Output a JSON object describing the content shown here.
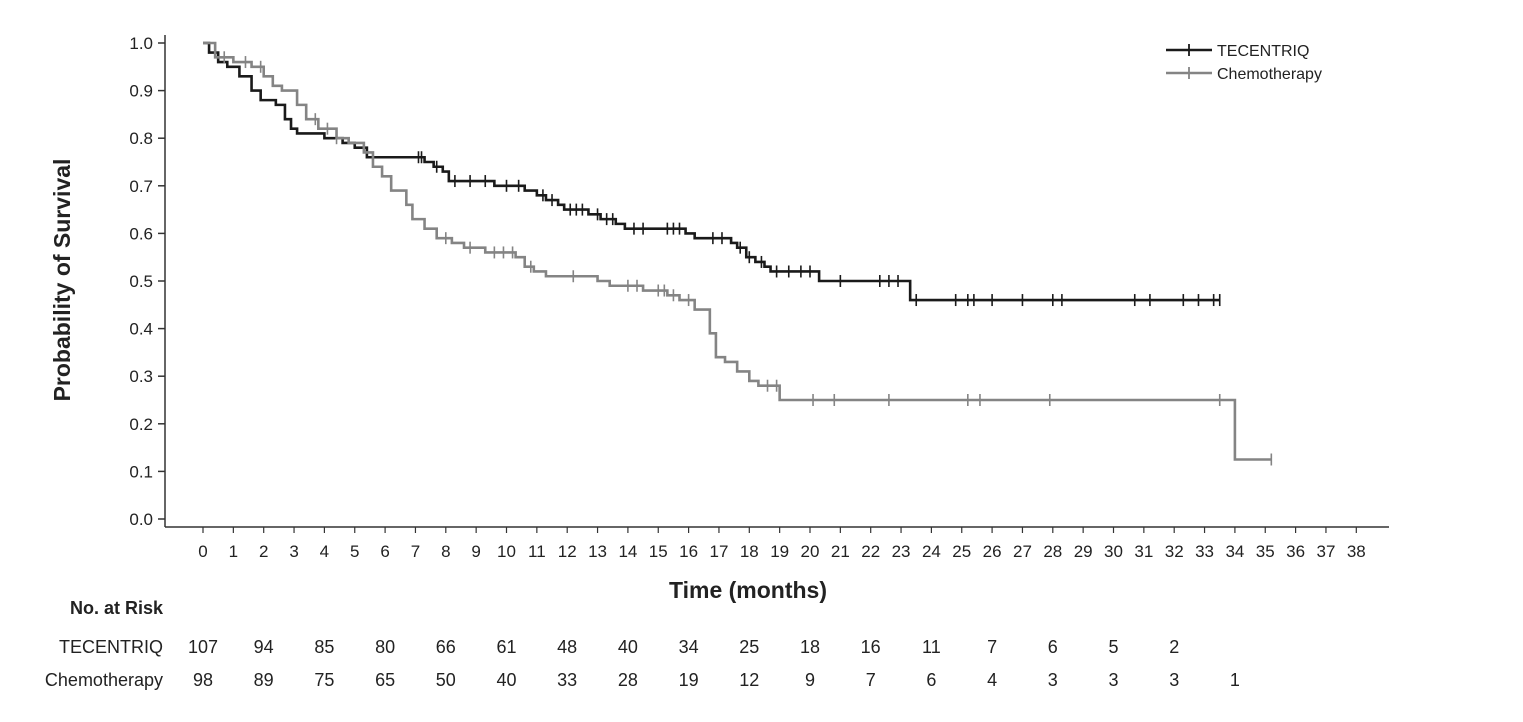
{
  "chart_data": {
    "type": "line",
    "subtype": "kaplan-meier",
    "title": "",
    "xlabel": "Time (months)",
    "ylabel": "Probability of Survival",
    "xlim": [
      0,
      38
    ],
    "ylim": [
      0,
      1
    ],
    "x_ticks": [
      0,
      1,
      2,
      3,
      4,
      5,
      6,
      7,
      8,
      9,
      10,
      11,
      12,
      13,
      14,
      15,
      16,
      17,
      18,
      19,
      20,
      21,
      22,
      23,
      24,
      25,
      26,
      27,
      28,
      29,
      30,
      31,
      32,
      33,
      34,
      35,
      36,
      37,
      38
    ],
    "y_ticks": [
      "0.0",
      "0.1",
      "0.2",
      "0.3",
      "0.4",
      "0.5",
      "0.6",
      "0.7",
      "0.8",
      "0.9",
      "1.0"
    ],
    "grid": false,
    "legend_position": "top-right",
    "series": [
      {
        "name": "TECENTRIQ",
        "color": "#1a1a1a",
        "steps": [
          [
            0,
            1.0
          ],
          [
            0.2,
            0.98
          ],
          [
            0.5,
            0.96
          ],
          [
            0.8,
            0.95
          ],
          [
            1.2,
            0.93
          ],
          [
            1.6,
            0.9
          ],
          [
            1.9,
            0.88
          ],
          [
            2.4,
            0.87
          ],
          [
            2.7,
            0.84
          ],
          [
            2.9,
            0.82
          ],
          [
            3.1,
            0.81
          ],
          [
            4.0,
            0.8
          ],
          [
            4.6,
            0.79
          ],
          [
            5.0,
            0.78
          ],
          [
            5.4,
            0.76
          ],
          [
            7.0,
            0.76
          ],
          [
            7.3,
            0.75
          ],
          [
            7.6,
            0.74
          ],
          [
            7.9,
            0.73
          ],
          [
            8.1,
            0.71
          ],
          [
            9.6,
            0.7
          ],
          [
            10.6,
            0.69
          ],
          [
            11.0,
            0.68
          ],
          [
            11.3,
            0.67
          ],
          [
            11.7,
            0.66
          ],
          [
            11.9,
            0.65
          ],
          [
            12.7,
            0.64
          ],
          [
            13.1,
            0.63
          ],
          [
            13.6,
            0.62
          ],
          [
            13.9,
            0.61
          ],
          [
            15.9,
            0.6
          ],
          [
            16.2,
            0.59
          ],
          [
            17.4,
            0.58
          ],
          [
            17.6,
            0.57
          ],
          [
            17.9,
            0.55
          ],
          [
            18.2,
            0.54
          ],
          [
            18.5,
            0.53
          ],
          [
            18.7,
            0.52
          ],
          [
            20.3,
            0.5
          ],
          [
            23.3,
            0.46
          ]
        ],
        "end_x": 33.5,
        "censor_x": [
          7.1,
          7.2,
          7.7,
          8.3,
          8.8,
          9.3,
          10.0,
          10.4,
          11.2,
          11.5,
          12.1,
          12.3,
          12.5,
          13.0,
          13.3,
          13.5,
          14.2,
          14.5,
          15.3,
          15.5,
          15.7,
          16.8,
          17.1,
          17.7,
          18.0,
          18.4,
          18.9,
          19.3,
          19.7,
          20.0,
          21.0,
          22.3,
          22.6,
          22.9,
          23.5,
          24.8,
          25.2,
          25.4,
          26.0,
          27.0,
          28.0,
          28.3,
          30.7,
          31.2,
          32.3,
          32.8,
          33.3,
          33.5
        ]
      },
      {
        "name": "Chemotherapy",
        "color": "#848484",
        "steps": [
          [
            0,
            1.0
          ],
          [
            0.4,
            0.97
          ],
          [
            1.0,
            0.96
          ],
          [
            1.6,
            0.95
          ],
          [
            2.0,
            0.93
          ],
          [
            2.3,
            0.91
          ],
          [
            2.6,
            0.9
          ],
          [
            3.1,
            0.87
          ],
          [
            3.4,
            0.84
          ],
          [
            3.8,
            0.82
          ],
          [
            4.4,
            0.8
          ],
          [
            4.8,
            0.79
          ],
          [
            5.3,
            0.77
          ],
          [
            5.6,
            0.74
          ],
          [
            5.9,
            0.72
          ],
          [
            6.2,
            0.69
          ],
          [
            6.7,
            0.66
          ],
          [
            6.9,
            0.63
          ],
          [
            7.3,
            0.61
          ],
          [
            7.7,
            0.59
          ],
          [
            8.2,
            0.58
          ],
          [
            8.6,
            0.57
          ],
          [
            9.3,
            0.56
          ],
          [
            10.3,
            0.55
          ],
          [
            10.6,
            0.53
          ],
          [
            10.9,
            0.52
          ],
          [
            11.3,
            0.51
          ],
          [
            13.0,
            0.5
          ],
          [
            13.4,
            0.49
          ],
          [
            14.5,
            0.48
          ],
          [
            15.3,
            0.47
          ],
          [
            15.7,
            0.46
          ],
          [
            16.2,
            0.44
          ],
          [
            16.7,
            0.39
          ],
          [
            16.9,
            0.34
          ],
          [
            17.2,
            0.33
          ],
          [
            17.6,
            0.31
          ],
          [
            18.0,
            0.29
          ],
          [
            18.3,
            0.28
          ],
          [
            19.0,
            0.25
          ],
          [
            34.0,
            0.125
          ]
        ],
        "end_x": 35.2,
        "censor_x": [
          0.7,
          1.4,
          1.9,
          3.7,
          4.1,
          4.4,
          8.0,
          8.8,
          9.6,
          9.9,
          10.2,
          10.8,
          12.2,
          14.0,
          14.3,
          15.0,
          15.2,
          15.5,
          16.0,
          18.6,
          18.9,
          20.1,
          20.8,
          22.6,
          25.2,
          25.6,
          27.9,
          33.5,
          35.2
        ]
      }
    ]
  },
  "risk_table": {
    "header": "No. at Risk",
    "rows": [
      {
        "label": "TECENTRIQ",
        "values": [
          "107",
          "94",
          "85",
          "80",
          "66",
          "61",
          "48",
          "40",
          "34",
          "25",
          "18",
          "16",
          "11",
          "7",
          "6",
          "5",
          "2"
        ]
      },
      {
        "label": "Chemotherapy",
        "values": [
          "98",
          "89",
          "75",
          "65",
          "50",
          "40",
          "33",
          "28",
          "19",
          "12",
          "9",
          "7",
          "6",
          "4",
          "3",
          "3",
          "3",
          "1"
        ]
      }
    ]
  }
}
